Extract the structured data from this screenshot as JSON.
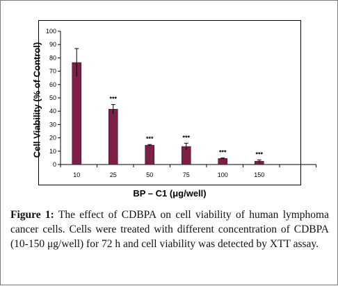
{
  "chart_data": {
    "type": "bar",
    "categories": [
      "10",
      "25",
      "50",
      "75",
      "100",
      "150"
    ],
    "values": [
      76.5,
      41.5,
      14.5,
      13.5,
      4.5,
      2.5
    ],
    "errors": [
      10.5,
      3.5,
      0.5,
      2.5,
      0.5,
      1
    ],
    "annotations": [
      "",
      "***",
      "***",
      "***",
      "***",
      "***"
    ],
    "xlabel": "BP – C1 (μg/well)",
    "ylabel": "Cell Viability (% of Control)",
    "ylim": [
      0,
      100
    ],
    "yticks": [
      0,
      10,
      20,
      30,
      40,
      50,
      60,
      70,
      80,
      90,
      100
    ],
    "grid": false,
    "bar_color": "#7d2048"
  },
  "caption": {
    "label": "Figure 1:",
    "text": " The effect of CDBPA on cell viability of human lymphoma cancer cells. Cells were treated with different concentration of CDBPA (10-150 μg/well) for 72 h and cell viability was detected by XTT assay."
  }
}
